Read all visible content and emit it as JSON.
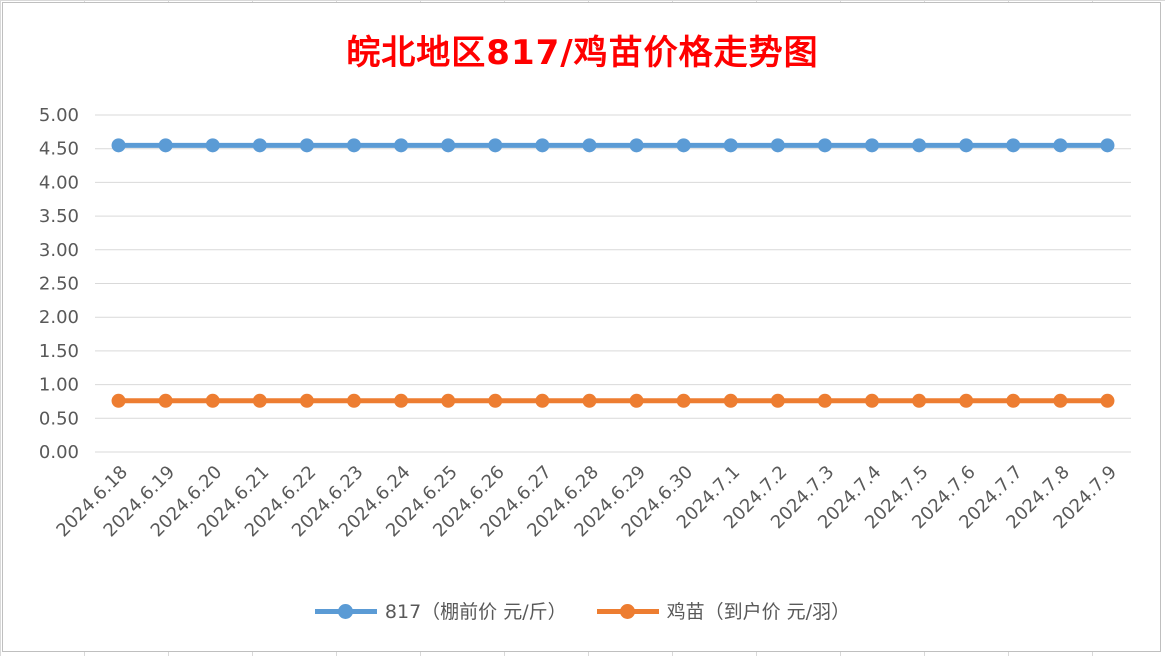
{
  "chart_data": {
    "type": "line",
    "title": "皖北地区817/鸡苗价格走势图",
    "categories": [
      "2024.6.18",
      "2024.6.19",
      "2024.6.20",
      "2024.6.21",
      "2024.6.22",
      "2024.6.23",
      "2024.6.24",
      "2024.6.25",
      "2024.6.26",
      "2024.6.27",
      "2024.6.28",
      "2024.6.29",
      "2024.6.30",
      "2024.7.1",
      "2024.7.2",
      "2024.7.3",
      "2024.7.4",
      "2024.7.5",
      "2024.7.6",
      "2024.7.7",
      "2024.7.8",
      "2024.7.9"
    ],
    "series": [
      {
        "name": "817（棚前价 元/斤）",
        "color": "#5b9bd5",
        "values": [
          4.55,
          4.55,
          4.55,
          4.55,
          4.55,
          4.55,
          4.55,
          4.55,
          4.55,
          4.55,
          4.55,
          4.55,
          4.55,
          4.55,
          4.55,
          4.55,
          4.55,
          4.55,
          4.55,
          4.55,
          4.55,
          4.55
        ]
      },
      {
        "name": "鸡苗（到户价 元/羽）",
        "color": "#ed7d31",
        "values": [
          0.76,
          0.76,
          0.76,
          0.76,
          0.76,
          0.76,
          0.76,
          0.76,
          0.76,
          0.76,
          0.76,
          0.76,
          0.76,
          0.76,
          0.76,
          0.76,
          0.76,
          0.76,
          0.76,
          0.76,
          0.76,
          0.76
        ]
      }
    ],
    "ylim": [
      0,
      5
    ],
    "yticks": [
      "0.00",
      "0.50",
      "1.00",
      "1.50",
      "2.00",
      "2.50",
      "3.00",
      "3.50",
      "4.00",
      "4.50",
      "5.00"
    ],
    "grid": true,
    "legend_position": "bottom",
    "xlabel": "",
    "ylabel": ""
  }
}
